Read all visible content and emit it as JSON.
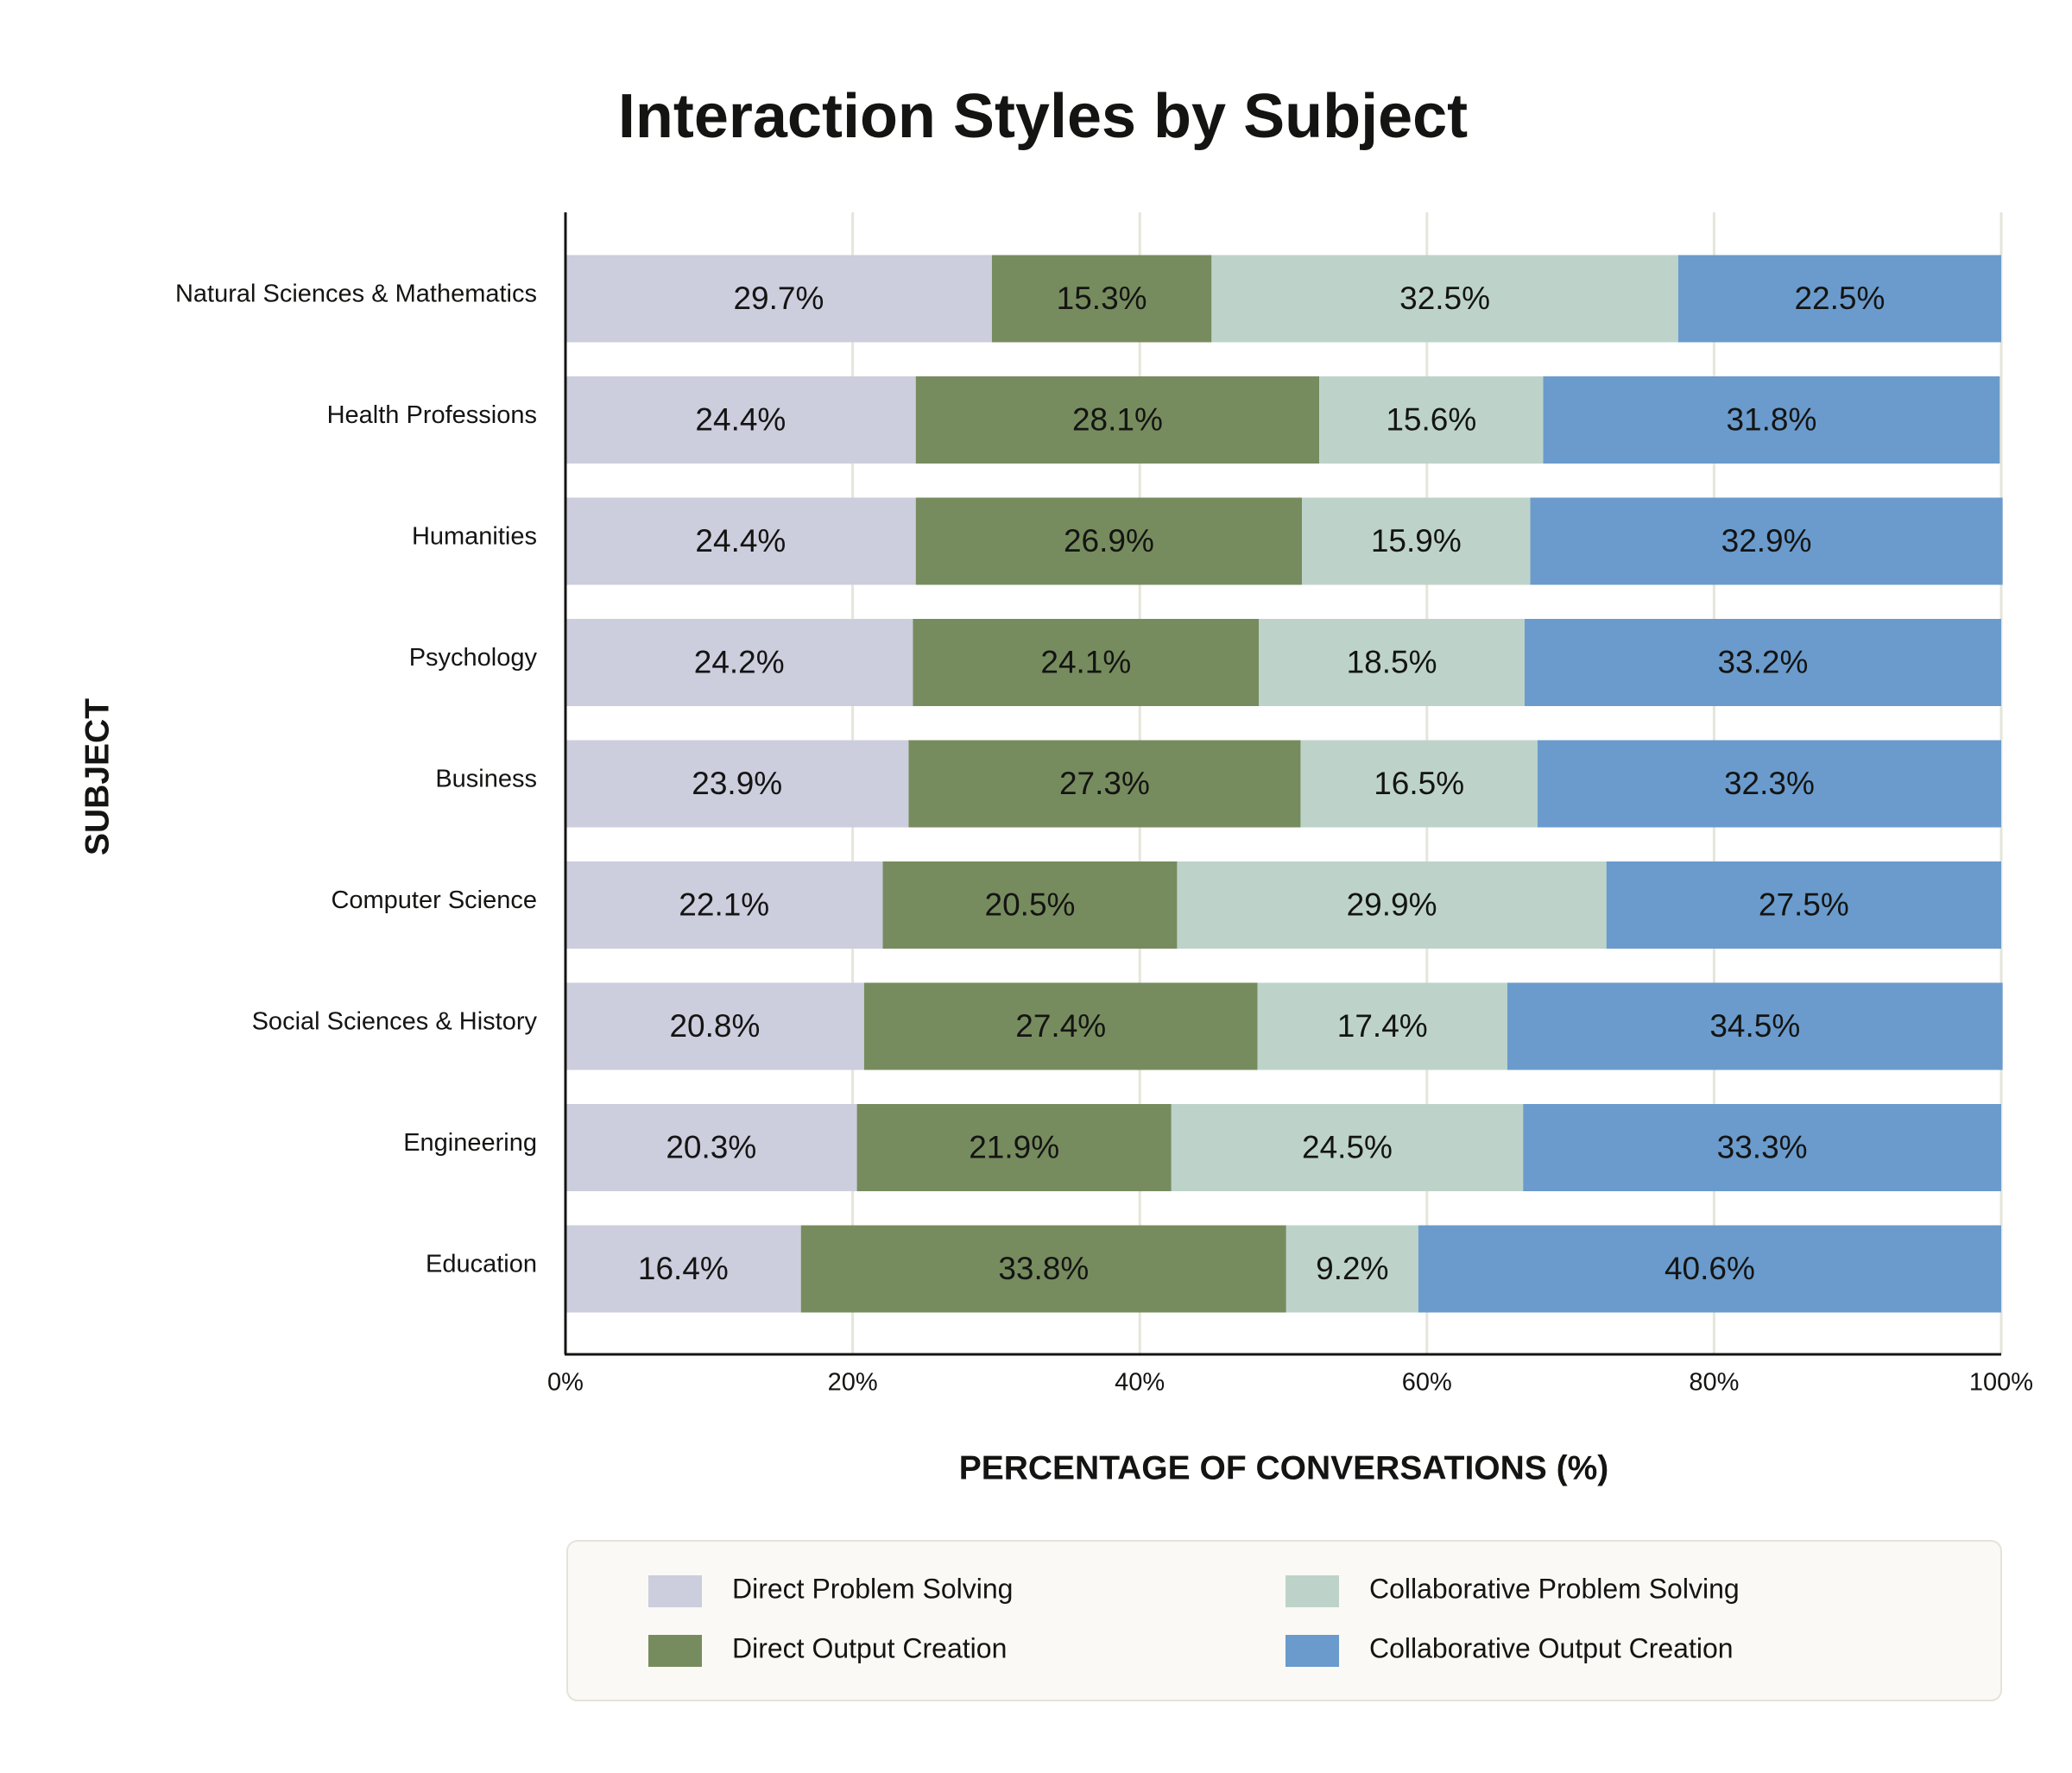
{
  "chart_data": {
    "type": "stacked-bar-horizontal",
    "title": "Interaction Styles by Subject",
    "x_label": "PERCENTAGE OF CONVERSATIONS (%)",
    "y_label": "SUBJECT",
    "categories": [
      "Natural Sciences & Mathematics",
      "Health Professions",
      "Humanities",
      "Psychology",
      "Business",
      "Computer Science",
      "Social Sciences & History",
      "Engineering",
      "Education"
    ],
    "series": [
      {
        "name": "Direct Problem Solving",
        "color": "#cccddd",
        "values": [
          29.7,
          24.4,
          24.4,
          24.2,
          23.9,
          22.1,
          20.8,
          20.3,
          16.4
        ],
        "value_labels": [
          "29.7%",
          "24.4%",
          "24.4%",
          "24.2%",
          "23.9%",
          "22.1%",
          "20.8%",
          "20.3%",
          "16.4%"
        ]
      },
      {
        "name": "Direct Output Creation",
        "color": "#778c5e",
        "values": [
          15.3,
          28.1,
          26.9,
          24.1,
          27.3,
          20.5,
          27.4,
          21.9,
          33.8
        ],
        "value_labels": [
          "15.3%",
          "28.1%",
          "26.9%",
          "24.1%",
          "27.3%",
          "20.5%",
          "27.4%",
          "21.9%",
          "33.8%"
        ]
      },
      {
        "name": "Collaborative Problem Solving",
        "color": "#bdd3ca",
        "values": [
          32.5,
          15.6,
          15.9,
          18.5,
          16.5,
          29.9,
          17.4,
          24.5,
          9.2
        ],
        "value_labels": [
          "32.5%",
          "15.6%",
          "15.9%",
          "18.5%",
          "16.5%",
          "29.9%",
          "17.4%",
          "24.5%",
          "9.2%"
        ]
      },
      {
        "name": "Collaborative Output Creation",
        "color": "#6a9bcc",
        "values": [
          22.5,
          31.8,
          32.9,
          33.2,
          32.3,
          27.5,
          34.5,
          33.3,
          40.6
        ],
        "value_labels": [
          "22.5%",
          "31.8%",
          "32.9%",
          "33.2%",
          "32.3%",
          "27.5%",
          "34.5%",
          "33.3%",
          "40.6%"
        ]
      }
    ],
    "xlim": [
      0,
      100
    ],
    "xticks": [
      {
        "value": 0,
        "label": "0%"
      },
      {
        "value": 20,
        "label": "20%"
      },
      {
        "value": 40,
        "label": "40%"
      },
      {
        "value": 60,
        "label": "60%"
      },
      {
        "value": 80,
        "label": "80%"
      },
      {
        "value": 100,
        "label": "100%"
      }
    ],
    "grid": true,
    "legend": "bottom"
  }
}
